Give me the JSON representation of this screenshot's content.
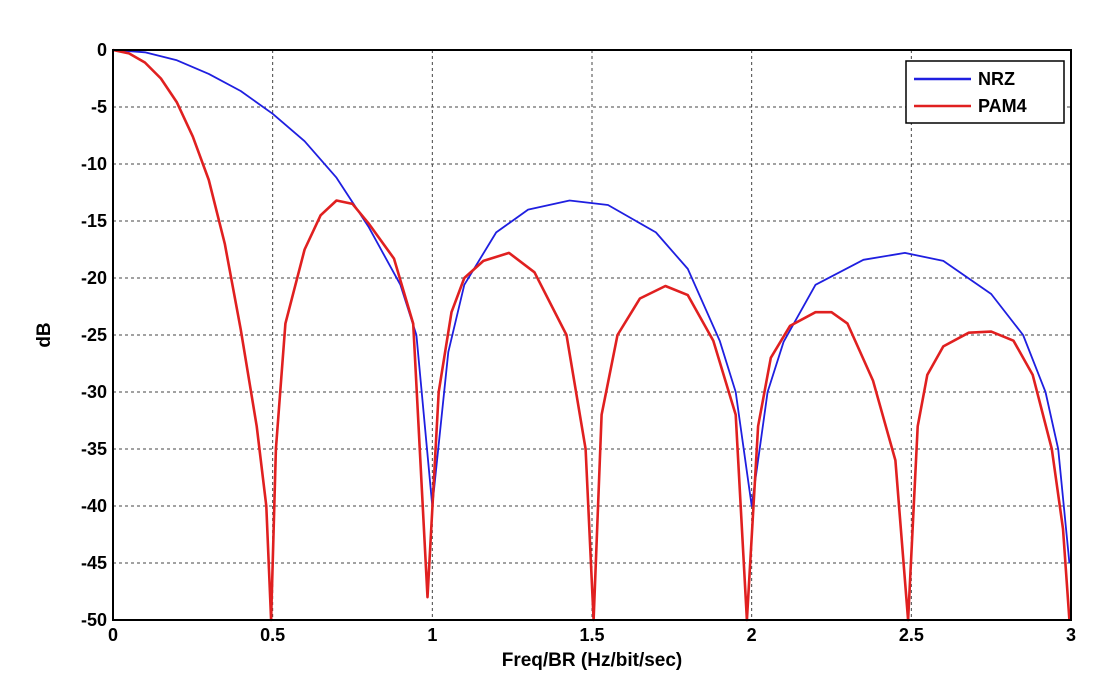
{
  "chart_data": {
    "type": "line",
    "title": "",
    "xlabel": "Freq/BR (Hz/bit/sec)",
    "ylabel": "dB",
    "xlim": [
      0,
      3
    ],
    "ylim": [
      -50,
      0
    ],
    "xticks": [
      0,
      0.5,
      1,
      1.5,
      2,
      2.5,
      3
    ],
    "xtick_labels": [
      "0",
      "0.5",
      "1",
      "1.5",
      "2",
      "2.5",
      "3"
    ],
    "yticks": [
      0,
      -5,
      -10,
      -15,
      -20,
      -25,
      -30,
      -35,
      -40,
      -45,
      -50
    ],
    "ytick_labels": [
      "0",
      "-5",
      "-10",
      "-15",
      "-20",
      "-25",
      "-30",
      "-35",
      "-40",
      "-45",
      "-50"
    ],
    "grid": true,
    "legend_position": "top-right",
    "series": [
      {
        "name": "NRZ",
        "color": "#1f1fe0",
        "x": [
          0,
          0.1,
          0.2,
          0.3,
          0.4,
          0.5,
          0.6,
          0.7,
          0.8,
          0.9,
          0.95,
          1.0,
          1.05,
          1.1,
          1.2,
          1.3,
          1.43,
          1.55,
          1.7,
          1.8,
          1.9,
          1.95,
          2.0,
          2.05,
          2.1,
          2.2,
          2.35,
          2.48,
          2.6,
          2.75,
          2.85,
          2.92,
          2.96,
          2.995
        ],
        "y": [
          0,
          -0.2,
          -0.9,
          -2.1,
          -3.6,
          -5.6,
          -8.0,
          -11.2,
          -15.5,
          -20.6,
          -25.0,
          -40.0,
          -26.5,
          -20.6,
          -16.0,
          -14.0,
          -13.2,
          -13.6,
          -16.0,
          -19.2,
          -25.5,
          -30.0,
          -40.0,
          -30.0,
          -25.6,
          -20.6,
          -18.4,
          -17.8,
          -18.5,
          -21.4,
          -25.0,
          -30.0,
          -35.0,
          -45.0
        ]
      },
      {
        "name": "PAM4",
        "color": "#e02020",
        "x": [
          0,
          0.05,
          0.1,
          0.15,
          0.2,
          0.25,
          0.3,
          0.35,
          0.4,
          0.45,
          0.48,
          0.495,
          0.51,
          0.54,
          0.6,
          0.65,
          0.7,
          0.75,
          0.8,
          0.88,
          0.94,
          0.985,
          1.02,
          1.06,
          1.1,
          1.16,
          1.24,
          1.32,
          1.42,
          1.48,
          1.505,
          1.53,
          1.58,
          1.65,
          1.73,
          1.8,
          1.88,
          1.95,
          1.985,
          2.02,
          2.06,
          2.12,
          2.2,
          2.25,
          2.3,
          2.38,
          2.45,
          2.49,
          2.52,
          2.55,
          2.6,
          2.68,
          2.75,
          2.82,
          2.88,
          2.94,
          2.975,
          2.995
        ],
        "y": [
          0,
          -0.3,
          -1.1,
          -2.5,
          -4.6,
          -7.6,
          -11.4,
          -17.0,
          -24.5,
          -33.0,
          -40.0,
          -50.0,
          -35.0,
          -24.0,
          -17.5,
          -14.5,
          -13.2,
          -13.5,
          -15.2,
          -18.3,
          -24.0,
          -48.0,
          -30.0,
          -23.0,
          -20.0,
          -18.5,
          -17.8,
          -19.5,
          -25.0,
          -35.0,
          -50.0,
          -32.0,
          -25.0,
          -21.8,
          -20.7,
          -21.5,
          -25.5,
          -32.0,
          -50.0,
          -33.0,
          -27.0,
          -24.2,
          -23.0,
          -23.0,
          -24.0,
          -29.0,
          -36.0,
          -50.0,
          -33.0,
          -28.5,
          -26.0,
          -24.8,
          -24.7,
          -25.5,
          -28.5,
          -35.0,
          -42.0,
          -50.0
        ]
      }
    ]
  }
}
